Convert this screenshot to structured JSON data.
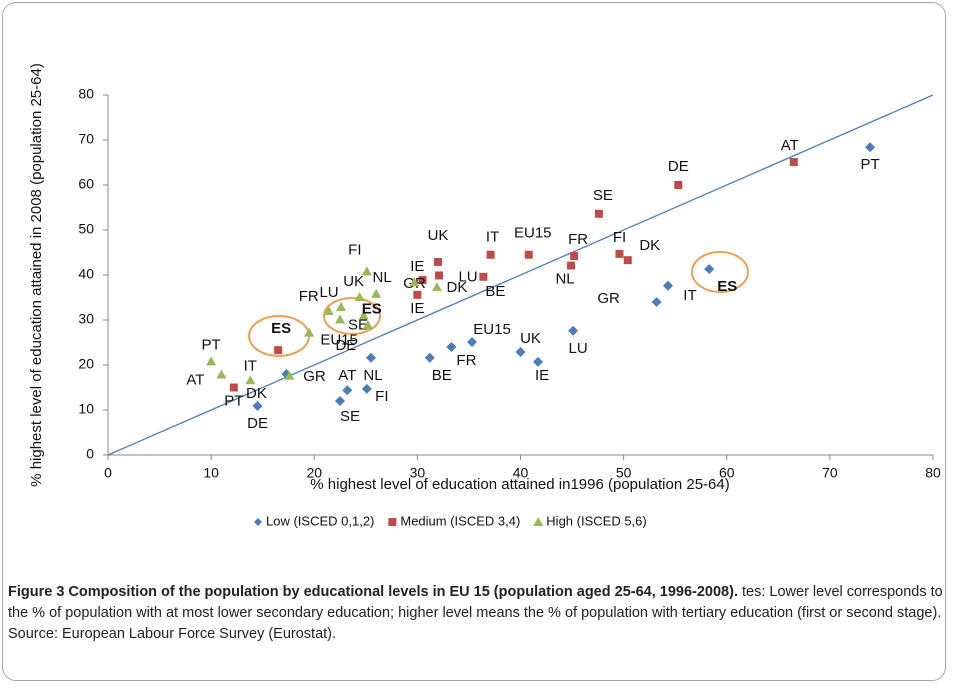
{
  "chart_data": {
    "type": "scatter",
    "ylabel": "% highest level of education attained in 2008 (population 25-64)",
    "xlabel": "% highest level of education attained in1996 (population 25-64)",
    "xlim": [
      0,
      80
    ],
    "xticks": [
      0,
      10,
      20,
      30,
      40,
      50,
      60,
      70,
      80
    ],
    "ylim": [
      0,
      80
    ],
    "yticks": [
      0,
      10,
      20,
      30,
      40,
      50,
      60,
      70,
      80
    ],
    "legend": "bottom",
    "diagonal": true,
    "series": [
      {
        "name": "Low (ISCED 0,1,2)",
        "color": "#4a7ebb",
        "marker": "diamond",
        "bold_label_indices": [
          1
        ],
        "labels": [
          "PT",
          "ES",
          "IT",
          "GR",
          "LU",
          "IE",
          "UK",
          "EU15",
          "FR",
          "BE",
          "NL",
          "FI",
          "AT",
          "SE",
          "DK",
          "DE"
        ],
        "x": [
          73.9,
          58.3,
          54.3,
          53.2,
          45.1,
          41.7,
          40.0,
          35.3,
          33.3,
          31.2,
          25.5,
          25.1,
          23.2,
          22.5,
          17.3,
          14.5
        ],
        "values": [
          68.4,
          41.3,
          37.6,
          34.0,
          27.6,
          20.7,
          22.9,
          25.1,
          24.0,
          21.6,
          21.6,
          14.7,
          14.4,
          12.0,
          18.0,
          10.9
        ]
      },
      {
        "name": "Medium (ISCED 3,4)",
        "color": "#be4b48",
        "marker": "square",
        "bold_label_indices": [
          1
        ],
        "labels": [
          "PT",
          "ES",
          "IE",
          "GR",
          "LU",
          "UK",
          "BE",
          "IT",
          "EU15",
          "NL",
          "FR",
          "FI",
          "DK",
          "SE",
          "DE",
          "AT"
        ],
        "x": [
          12.2,
          16.5,
          30.0,
          30.5,
          32.1,
          32.0,
          36.4,
          37.1,
          40.8,
          44.9,
          45.2,
          49.6,
          50.4,
          47.6,
          55.3,
          66.5
        ],
        "values": [
          15.0,
          23.3,
          35.6,
          38.9,
          39.9,
          42.9,
          39.6,
          44.5,
          44.5,
          42.1,
          44.2,
          44.7,
          43.3,
          53.6,
          60.0,
          65.1
        ]
      },
      {
        "name": "High (ISCED 5,6)",
        "color": "#98b954",
        "marker": "triangle",
        "bold_label_indices": [
          9
        ],
        "labels": [
          "PT",
          "AT",
          "IT",
          "GR",
          "EU15",
          "FR",
          "LU",
          "SE",
          "DE",
          "ES",
          "UK",
          "FI",
          "NL",
          "IE",
          "DK"
        ],
        "x": [
          10.0,
          11.0,
          13.8,
          17.6,
          19.5,
          21.4,
          22.6,
          22.5,
          25.2,
          24.8,
          24.4,
          25.1,
          26.0,
          29.7,
          31.9
        ],
        "values": [
          20.8,
          17.9,
          16.6,
          17.6,
          27.2,
          32.0,
          32.9,
          30.1,
          28.9,
          31.0,
          35.1,
          40.8,
          35.8,
          38.4,
          37.3
        ]
      }
    ],
    "caption_title": "Figure 3 Composition of the population by educational levels in EU 15 (population aged 25-64, 1996-2008).",
    "caption_text": " tes: Lower level corresponds to the % of population with at most lower secondary education; higher level means the % of population with tertiary education (first or second stage). Source: European Labour Force Survey (Eurostat)."
  }
}
